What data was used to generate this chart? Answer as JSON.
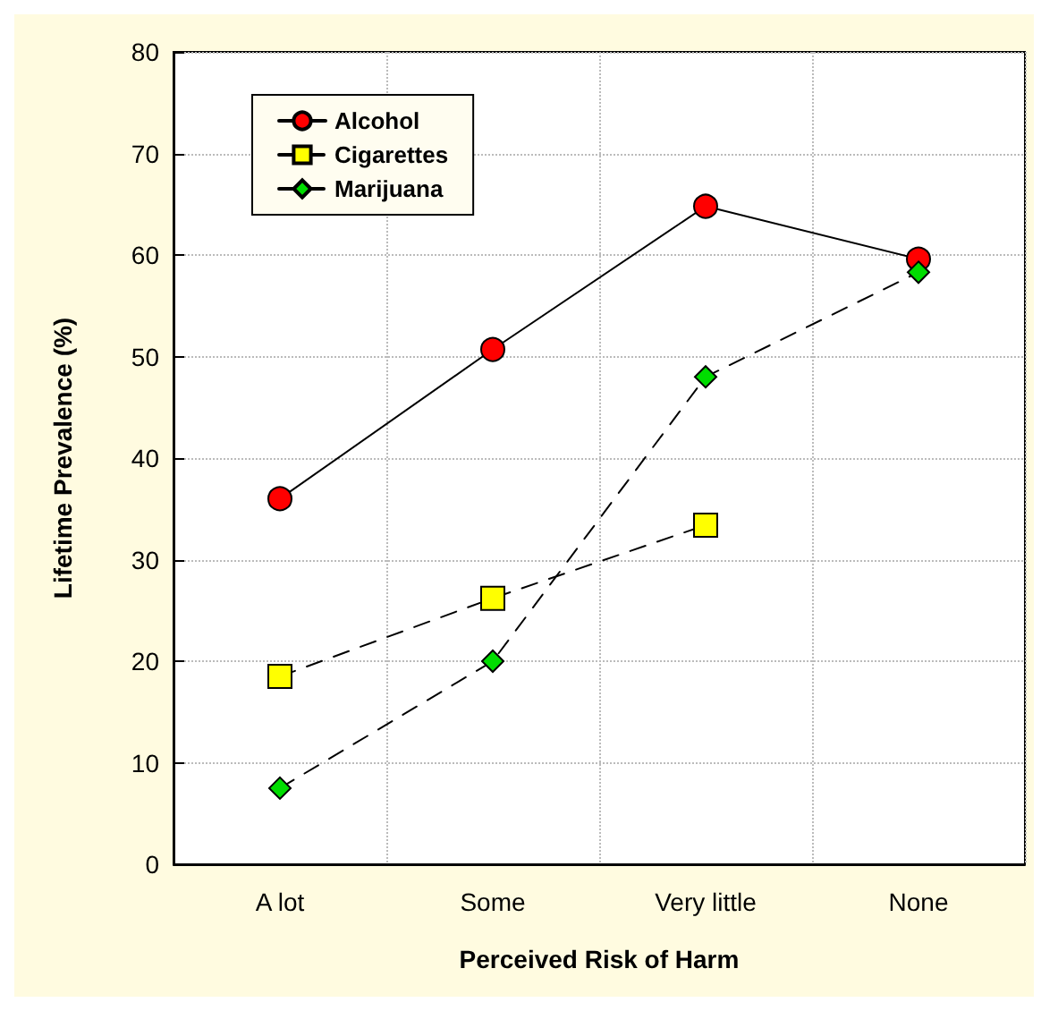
{
  "chart_data": {
    "type": "line",
    "xlabel": "Perceived Risk of Harm",
    "ylabel": "Lifetime Prevalence (%)",
    "categories": [
      "A lot",
      "Some",
      "Very little",
      "None"
    ],
    "series": [
      {
        "name": "Alcohol",
        "color": "#ff0000",
        "marker": "circle",
        "line_style": "solid",
        "values": [
          36,
          50.7,
          64.8,
          59.6
        ]
      },
      {
        "name": "Cigarettes",
        "color": "#ffff00",
        "marker": "square",
        "line_style": "dashed",
        "values": [
          18.5,
          26.2,
          33.4,
          null
        ]
      },
      {
        "name": "Marijuana",
        "color": "#00dd00",
        "marker": "diamond",
        "line_style": "dashed",
        "values": [
          7.5,
          20,
          48,
          58.3
        ]
      }
    ],
    "ylim": [
      0,
      80
    ],
    "yticks": [
      0,
      10,
      20,
      30,
      40,
      50,
      60,
      70,
      80
    ],
    "grid": true,
    "legend": "top left"
  }
}
